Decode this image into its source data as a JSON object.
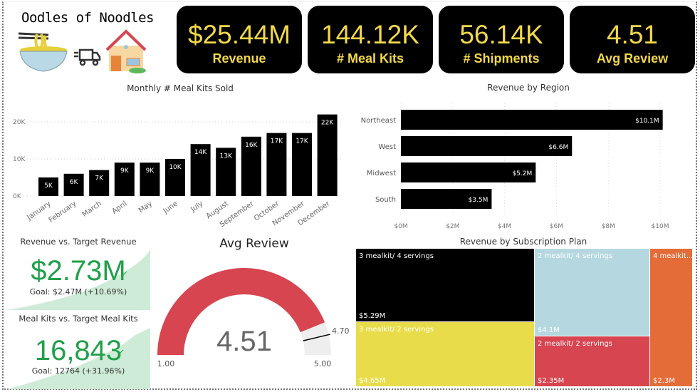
{
  "header": {
    "logo_title": "Oodles of Noodles"
  },
  "kpis": [
    {
      "value": "$25.44M",
      "label": "Revenue"
    },
    {
      "value": "144.12K",
      "label": "# Meal Kits"
    },
    {
      "value": "56.14K",
      "label": "# Shipments"
    },
    {
      "value": "4.51",
      "label": "Avg Review"
    }
  ],
  "colors": {
    "kpi_text": "#F2D84B",
    "bar": "#000000",
    "good": "#1FA04A",
    "gauge_fill": "#D64550",
    "gauge_bg": "#EEEEEE"
  },
  "chart_data": [
    {
      "type": "bar",
      "title": "Monthly # Meal Kits Sold",
      "categories": [
        "January",
        "February",
        "March",
        "April",
        "May",
        "June",
        "July",
        "August",
        "September",
        "October",
        "November",
        "December"
      ],
      "values": [
        5,
        6,
        7,
        9,
        9,
        10,
        14,
        13,
        16,
        17,
        17,
        22
      ],
      "data_labels": [
        "5K",
        "6K",
        "7K",
        "9K",
        "9K",
        "10K",
        "14K",
        "13K",
        "16K",
        "17K",
        "17K",
        "22K"
      ],
      "unit": "K",
      "yticks": [
        "0K",
        "10K",
        "20K"
      ],
      "ylim": [
        0,
        22
      ],
      "grid": true
    },
    {
      "type": "bar",
      "orientation": "horizontal",
      "title": "Revenue by Region",
      "categories": [
        "Northeast",
        "West",
        "Midwest",
        "South"
      ],
      "values": [
        10.1,
        6.6,
        5.2,
        3.5
      ],
      "data_labels": [
        "$10.1M",
        "$6.6M",
        "$5.2M",
        "$3.5M"
      ],
      "xticks": [
        "$0M",
        "$2M",
        "$4M",
        "$6M",
        "$8M",
        "$10M"
      ],
      "xlim": [
        0,
        10
      ],
      "grid": true
    },
    {
      "type": "treemap",
      "title": "Revenue by Subscription Plan",
      "items": [
        {
          "name": "3 mealkit/ 4 servings",
          "label": "$5.29M",
          "value": 5.29,
          "color": "#000000"
        },
        {
          "name": "3 mealkit/ 2 servings",
          "label": "$4.65M",
          "value": 4.65,
          "color": "#E8DC4A"
        },
        {
          "name": "2 mealkit/ 4 servings",
          "label": "$4.1M",
          "value": 4.1,
          "color": "#B5D8E0"
        },
        {
          "name": "2 mealkit/ 2 servings",
          "label": "$2.35M",
          "value": 2.35,
          "color": "#D64550"
        },
        {
          "name": "4 mealkit...",
          "label": "$2.3M",
          "value": 2.3,
          "color": "#E46C38"
        }
      ]
    },
    {
      "type": "gauge",
      "title": "Avg Review",
      "value": 4.51,
      "value_label": "4.51",
      "min": 1,
      "max": 5,
      "min_label": "1.00",
      "max_label": "5.00",
      "target": 4.7,
      "target_label": "4.70"
    }
  ],
  "targets": [
    {
      "title": "Revenue vs. Target Revenue",
      "value": "$2.73M",
      "goal": "Goal: $2.47M (+10.69%)"
    },
    {
      "title": "Meal Kits vs. Target Meal Kits",
      "value": "16,843",
      "goal": "Goal: 12764 (+31.96%)"
    }
  ]
}
